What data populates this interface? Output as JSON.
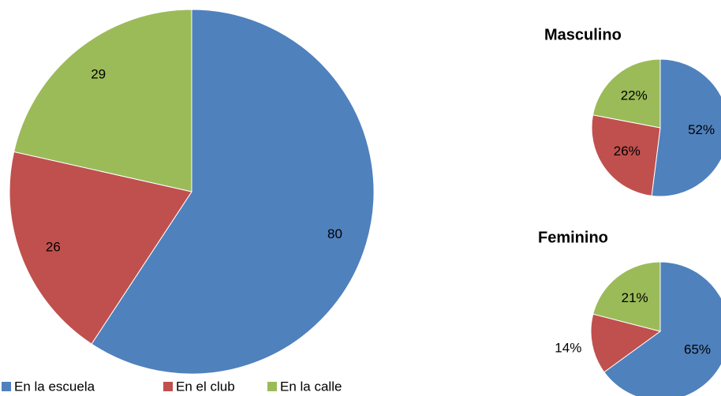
{
  "chart_data": [
    {
      "type": "pie",
      "categories": [
        "En la escuela",
        "En el club",
        "En la calle"
      ],
      "values": [
        80,
        26,
        29
      ],
      "colors": [
        "#4f81bd",
        "#c0504d",
        "#9bbb59"
      ],
      "legend": "bottom"
    },
    {
      "type": "pie",
      "title": "Masculino",
      "values": [
        52,
        26,
        22
      ],
      "value_labels": [
        "52%",
        "26%",
        "22%"
      ],
      "colors": [
        "#4f81bd",
        "#c0504d",
        "#9bbb59"
      ]
    },
    {
      "type": "pie",
      "title": "Feminino",
      "values": [
        65,
        14,
        21
      ],
      "value_labels": [
        "65%",
        "14%",
        "21%"
      ],
      "colors": [
        "#4f81bd",
        "#c0504d",
        "#9bbb59"
      ]
    }
  ]
}
